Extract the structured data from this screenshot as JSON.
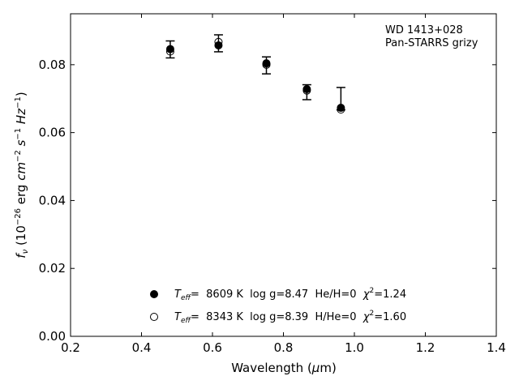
{
  "chart_data": {
    "type": "scatter",
    "title": "",
    "xlabel": "Wavelength (μm)",
    "ylabel": "f_ν (10^−26 erg cm^−2 s^−1 Hz^−1)",
    "xlim": [
      0.2,
      1.4
    ],
    "ylim": [
      0.0,
      0.095
    ],
    "xticks": [
      "0.2",
      "0.4",
      "0.6",
      "0.8",
      "1.0",
      "1.2",
      "1.4"
    ],
    "yticks": [
      "0.00",
      "0.02",
      "0.04",
      "0.06",
      "0.08"
    ],
    "grid": false,
    "annotation": [
      "WD 1413+028",
      "Pan-STARRS grizy"
    ],
    "legend_position": "lower-center",
    "observed": {
      "x": [
        0.481,
        0.617,
        0.752,
        0.866,
        0.962
      ],
      "y": [
        0.0845,
        0.0863,
        0.0798,
        0.0719,
        0.07
      ],
      "yerr": [
        0.0025,
        0.0025,
        0.0025,
        0.0022,
        0.0033
      ]
    },
    "series": [
      {
        "name": "Teff= 8609 K log g=8.47 He/H=0 χ2=1.24",
        "marker": "filled",
        "x": [
          0.481,
          0.617,
          0.752,
          0.866,
          0.962
        ],
        "y": [
          0.0846,
          0.0857,
          0.0804,
          0.0728,
          0.0673
        ]
      },
      {
        "name": "Teff= 8343 K log g=8.39 H/He=0 χ2=1.60",
        "marker": "open",
        "x": [
          0.481,
          0.617,
          0.752,
          0.866,
          0.962
        ],
        "y": [
          0.0839,
          0.0867,
          0.08,
          0.0724,
          0.0668
        ]
      }
    ],
    "legend": {
      "s1": {
        "teff_label": "T",
        "teff_sub": "eff",
        "eq": "=  8609 K  log g=8.47  He/H=0  ",
        "chi": "χ",
        "chi_sup": "2",
        "chi_val": "=1.24"
      },
      "s2": {
        "teff_label": "T",
        "teff_sub": "eff",
        "eq": "=  8343 K  log g=8.39  H/He=0  ",
        "chi": "χ",
        "chi_sup": "2",
        "chi_val": "=1.60"
      }
    },
    "axis_title_parts": {
      "x": {
        "pre": "Wavelength (",
        "mu": "μ",
        "post": "m)"
      },
      "y": {
        "f": "f",
        "nu": "ν",
        "open": " (10",
        "e1": "−26",
        "erg": " erg ",
        "cm": "cm",
        "e2": "−2",
        "s": " s",
        "e3": "−1",
        "hz": " Hz",
        "e4": "−1",
        "close": ")"
      }
    }
  }
}
